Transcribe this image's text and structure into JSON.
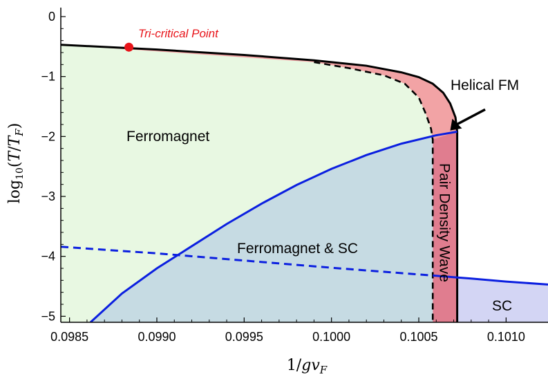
{
  "chart_data": {
    "type": "area",
    "title": "",
    "xlabel": "1/gv_F",
    "ylabel": "log10(T/T_F)",
    "xlim": [
      0.09845,
      0.10124
    ],
    "ylim": [
      -5.1,
      0.15
    ],
    "x_ticks": [
      0.0985,
      0.099,
      0.0995,
      0.1,
      0.1005,
      0.101
    ],
    "x_tick_labels": [
      "0.0985",
      "0.0990",
      "0.0995",
      "0.1000",
      "0.1005",
      "0.1010"
    ],
    "y_ticks": [
      0,
      -1,
      -2,
      -3,
      -4,
      -5
    ],
    "y_tick_labels": [
      "0",
      "−1",
      "−2",
      "−3",
      "−4",
      "−5"
    ],
    "colors": {
      "ferromagnet": "#e8f8e2",
      "fm_sc": "#c6dbe3",
      "pdw": "#e07d8f",
      "helical": "#f2a3a5",
      "sc": "#d3d5f4",
      "blue_line": "#0b1fe0",
      "tricritical": "#e8141a"
    },
    "series": [
      {
        "kind": "outer_boundary",
        "style": "solid-black",
        "x": [
          0.09845,
          0.099,
          0.0995,
          0.0999,
          0.1002,
          0.1004,
          0.1005,
          0.10058,
          0.10064,
          0.10068,
          0.10071,
          0.10072,
          0.10072
        ],
        "y": [
          -0.47,
          -0.55,
          -0.64,
          -0.73,
          -0.82,
          -0.93,
          -1.01,
          -1.12,
          -1.27,
          -1.45,
          -1.68,
          -1.92,
          -5.1
        ]
      },
      {
        "kind": "inner_boundary",
        "style": "dashed-black",
        "x": [
          0.0999,
          0.1001,
          0.1003,
          0.10042,
          0.1005,
          0.10054,
          0.10057,
          0.10058,
          0.10058
        ],
        "y": [
          -0.76,
          -0.86,
          -0.98,
          -1.12,
          -1.35,
          -1.62,
          -1.87,
          -2.05,
          -5.1
        ]
      },
      {
        "kind": "sc_boundary",
        "style": "solid-blue",
        "x": [
          0.09862,
          0.0988,
          0.099,
          0.0992,
          0.0994,
          0.0996,
          0.0998,
          0.1,
          0.1002,
          0.1004,
          0.1006,
          0.10072
        ],
        "y": [
          -5.1,
          -4.62,
          -4.2,
          -3.83,
          -3.46,
          -3.12,
          -2.81,
          -2.54,
          -2.31,
          -2.12,
          -1.98,
          -1.92
        ]
      },
      {
        "kind": "sc_boundary_left",
        "style": "dashed-blue",
        "x": [
          0.09845,
          0.099,
          0.0995,
          0.1,
          0.10058
        ],
        "y": [
          -3.84,
          -3.95,
          -4.07,
          -4.19,
          -4.32
        ]
      },
      {
        "kind": "sc_boundary_right",
        "style": "solid-blue",
        "x": [
          0.10058,
          0.1008,
          0.101,
          0.10124
        ],
        "y": [
          -4.32,
          -4.37,
          -4.42,
          -4.47
        ]
      }
    ],
    "regions": {
      "ferromagnet": "Ferromagnet",
      "fm_sc": "Ferromagnet & SC",
      "pdw": "Pair Density Wave",
      "helical": "Helical FM",
      "sc": "SC"
    },
    "points": [
      {
        "label": "Tri-critical Point",
        "x": 0.09884,
        "y": -0.51
      }
    ],
    "annotation_arrow": {
      "target": "helical",
      "from_x": 0.10088,
      "from_y": -1.55,
      "to_x": 0.10068,
      "to_y": -1.9
    }
  }
}
